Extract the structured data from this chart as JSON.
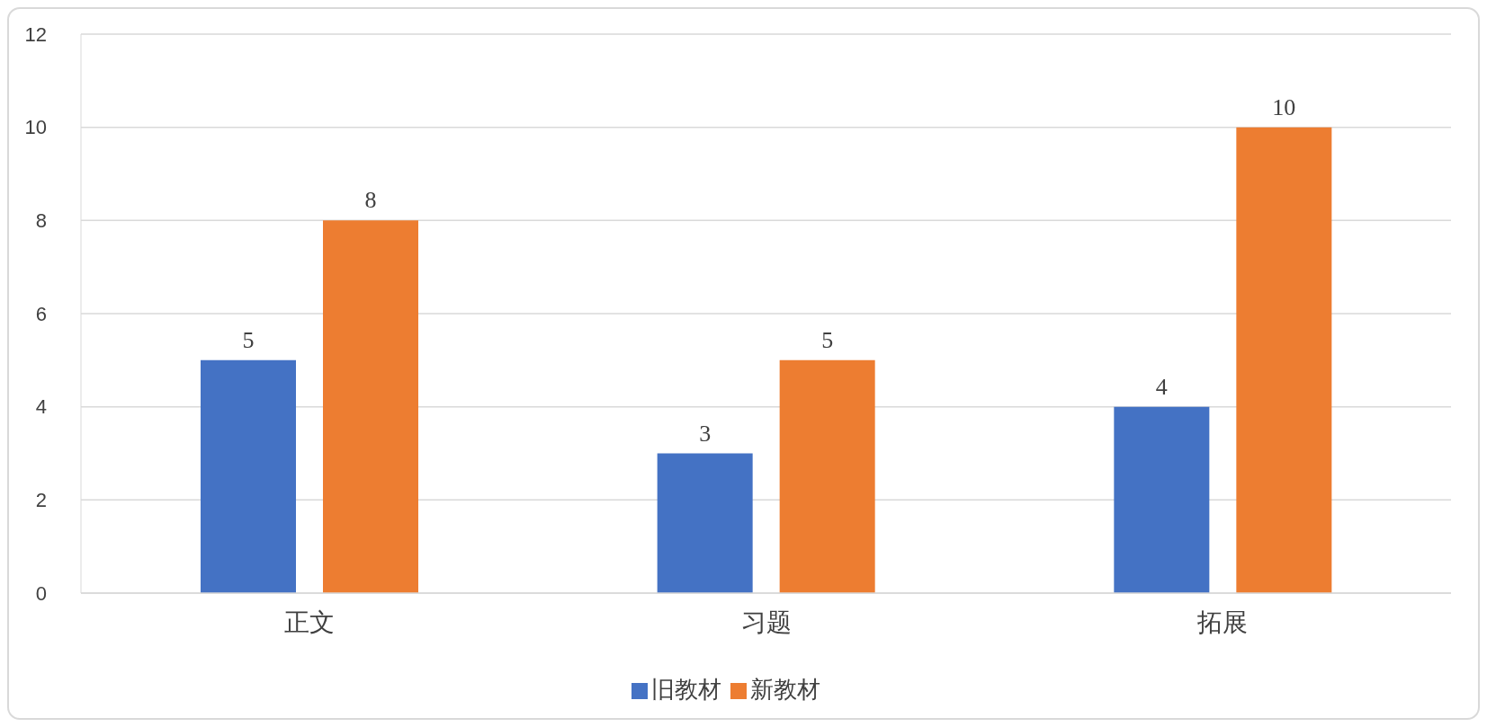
{
  "chart_data": {
    "type": "bar",
    "categories": [
      "正文",
      "习题",
      "拓展"
    ],
    "series": [
      {
        "name": "旧教材",
        "color": "#4472c4",
        "values": [
          5,
          3,
          4
        ]
      },
      {
        "name": "新教材",
        "color": "#ed7d31",
        "values": [
          8,
          5,
          10
        ]
      }
    ],
    "ylim": [
      0,
      12
    ],
    "yticks": [
      0,
      2,
      4,
      6,
      8,
      10,
      12
    ],
    "grid": "y",
    "legend": "bottom",
    "data_labels": true
  }
}
